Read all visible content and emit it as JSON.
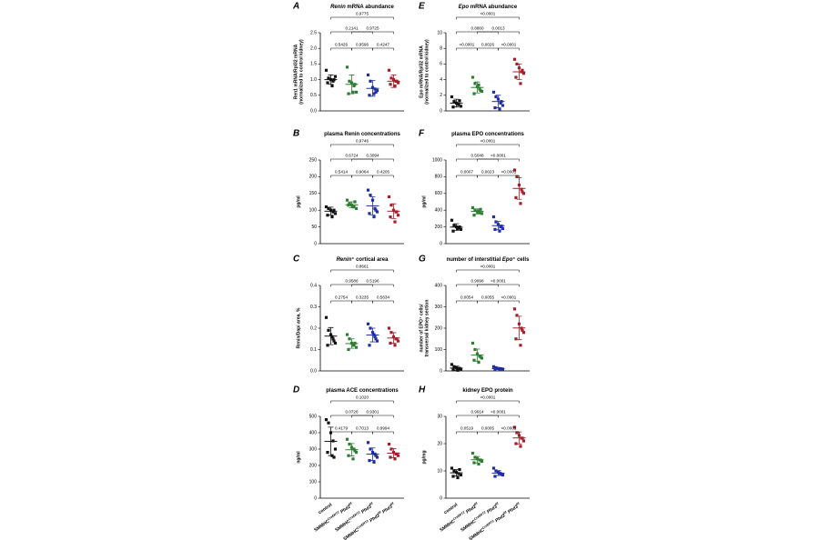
{
  "groups": [
    {
      "color": "#111111",
      "label": [
        {
          "text": "control"
        }
      ]
    },
    {
      "color": "#2e7d32",
      "label": [
        {
          "text": "SMMHC"
        },
        {
          "text": "CreERT2",
          "sup": true
        },
        {
          "text": " Phd2",
          "i": true
        },
        {
          "text": "f/f",
          "sup": true
        }
      ]
    },
    {
      "color": "#1f2ea0",
      "label": [
        {
          "text": "SMMHC"
        },
        {
          "text": "CreERT2",
          "sup": true
        },
        {
          "text": " Phd3",
          "i": true
        },
        {
          "text": "f/f",
          "sup": true
        }
      ]
    },
    {
      "color": "#a3202a",
      "label": [
        {
          "text": "SMMHC"
        },
        {
          "text": "CreERT2",
          "sup": true
        },
        {
          "text": " Phd2",
          "i": true
        },
        {
          "text": "f/f",
          "sup": true
        },
        {
          "text": " Phd3",
          "i": true
        },
        {
          "text": "f/f",
          "sup": true
        }
      ]
    }
  ],
  "chart_data": [
    {
      "type": "scatter",
      "panel": "A",
      "title": [
        {
          "text": "Renin",
          "i": true
        },
        {
          "text": " mRNA abundance"
        }
      ],
      "ylabel": [
        "Ren1 mRNA/Rpl32 mRNA",
        "(normalized to control kidney)"
      ],
      "ylim": [
        0,
        2.5
      ],
      "yticks": [
        {
          "value": 0,
          "label": "0.0"
        },
        0.5,
        {
          "value": 1,
          "label": "1.0"
        },
        1.5,
        {
          "value": 2,
          "label": "2.0"
        },
        2.5
      ],
      "series": [
        {
          "values": [
            1.3,
            1.05,
            1.0,
            0.95,
            1.1,
            0.9,
            0.8,
            1.0
          ],
          "mean": 1.0,
          "sd": 0.15
        },
        {
          "values": [
            1.4,
            0.95,
            0.9,
            0.8,
            0.6,
            0.55,
            0.6,
            0.85
          ],
          "mean": 0.85,
          "sd": 0.3
        },
        {
          "values": [
            1.15,
            0.95,
            0.75,
            0.7,
            0.65,
            0.5,
            0.55,
            0.6
          ],
          "mean": 0.72,
          "sd": 0.25
        },
        {
          "values": [
            1.3,
            1.05,
            1.0,
            0.95,
            0.9,
            0.85,
            0.8,
            0.95
          ],
          "mean": 0.95,
          "sd": 0.2
        }
      ],
      "comparisons": [
        {
          "from": 0,
          "to": 1,
          "label": "0.5426"
        },
        {
          "from": 1,
          "to": 2,
          "label": "0.9596"
        },
        {
          "from": 2,
          "to": 3,
          "label": "0.4247"
        },
        {
          "from": 0,
          "to": 2,
          "label": "0.2141"
        },
        {
          "from": 1,
          "to": 3,
          "label": "0.9725"
        },
        {
          "from": 0,
          "to": 3,
          "label": "0.9775"
        }
      ]
    },
    {
      "type": "scatter",
      "panel": "B",
      "title": [
        {
          "text": "plasma Renin concentrations"
        }
      ],
      "ylabel": [
        "pg/ml"
      ],
      "ylim": [
        0,
        250
      ],
      "yticks": [
        0,
        50,
        100,
        150,
        200,
        250
      ],
      "series": [
        {
          "values": [
            110,
            105,
            100,
            95,
            90,
            85,
            80,
            100
          ],
          "mean": 97,
          "sd": 12
        },
        {
          "values": [
            130,
            120,
            115,
            110,
            105,
            115,
            110,
            125
          ],
          "mean": 116,
          "sd": 9
        },
        {
          "values": [
            160,
            145,
            130,
            105,
            95,
            90,
            80,
            100
          ],
          "mean": 113,
          "sd": 27
        },
        {
          "values": [
            140,
            115,
            100,
            95,
            85,
            80,
            65,
            95
          ],
          "mean": 97,
          "sd": 22
        }
      ],
      "comparisons": [
        {
          "from": 0,
          "to": 1,
          "label": "0.5414"
        },
        {
          "from": 1,
          "to": 2,
          "label": "0.9064"
        },
        {
          "from": 2,
          "to": 3,
          "label": "0.4205"
        },
        {
          "from": 0,
          "to": 2,
          "label": "0.6724"
        },
        {
          "from": 1,
          "to": 3,
          "label": "0.3094"
        },
        {
          "from": 0,
          "to": 3,
          "label": "0.9746"
        }
      ]
    },
    {
      "type": "scatter",
      "panel": "C",
      "title": [
        {
          "text": "Renin",
          "i": true
        },
        {
          "text": "⁺ cortical area"
        }
      ],
      "ylabel": [
        "Renin/Dapi area, %"
      ],
      "ylim": [
        0,
        0.4
      ],
      "yticks": [
        {
          "value": 0,
          "label": "0.0"
        },
        0.1,
        0.2,
        0.3,
        0.4
      ],
      "series": [
        {
          "values": [
            0.25,
            0.19,
            0.17,
            0.15,
            0.13,
            0.12,
            0.16,
            0.14
          ],
          "mean": 0.163,
          "sd": 0.04
        },
        {
          "values": [
            0.17,
            0.15,
            0.13,
            0.12,
            0.11,
            0.1,
            0.12,
            0.13
          ],
          "mean": 0.128,
          "sd": 0.022
        },
        {
          "values": [
            0.22,
            0.2,
            0.18,
            0.16,
            0.14,
            0.12,
            0.17,
            0.15
          ],
          "mean": 0.168,
          "sd": 0.032
        },
        {
          "values": [
            0.2,
            0.18,
            0.16,
            0.15,
            0.14,
            0.13,
            0.12,
            0.15
          ],
          "mean": 0.154,
          "sd": 0.025
        }
      ],
      "comparisons": [
        {
          "from": 0,
          "to": 1,
          "label": "0.2754"
        },
        {
          "from": 1,
          "to": 2,
          "label": "0.3235"
        },
        {
          "from": 2,
          "to": 3,
          "label": "0.5634"
        },
        {
          "from": 0,
          "to": 2,
          "label": "0.9586"
        },
        {
          "from": 1,
          "to": 3,
          "label": "0.5196"
        },
        {
          "from": 0,
          "to": 3,
          "label": "0.8661"
        }
      ]
    },
    {
      "type": "scatter",
      "panel": "D",
      "title": [
        {
          "text": "plasma ACE concentrations"
        }
      ],
      "ylabel": [
        "ng/ml"
      ],
      "ylim": [
        0,
        500
      ],
      "yticks": [
        0,
        100,
        200,
        300,
        400,
        500
      ],
      "series": [
        {
          "values": [
            480,
            460,
            400,
            350,
            300,
            280,
            260,
            250
          ],
          "mean": 347,
          "sd": 87
        },
        {
          "values": [
            360,
            330,
            310,
            300,
            280,
            260,
            240,
            290
          ],
          "mean": 296,
          "sd": 38
        },
        {
          "values": [
            340,
            300,
            280,
            270,
            250,
            230,
            220,
            260
          ],
          "mean": 269,
          "sd": 38
        },
        {
          "values": [
            330,
            300,
            280,
            270,
            260,
            250,
            240,
            270
          ],
          "mean": 275,
          "sd": 28
        }
      ],
      "comparisons": [
        {
          "from": 0,
          "to": 1,
          "label": "0.4179"
        },
        {
          "from": 1,
          "to": 2,
          "label": "0.7013"
        },
        {
          "from": 2,
          "to": 3,
          "label": "0.9994"
        },
        {
          "from": 0,
          "to": 2,
          "label": "0.0726"
        },
        {
          "from": 1,
          "to": 3,
          "label": "0.9301"
        },
        {
          "from": 0,
          "to": 3,
          "label": "0.1020"
        }
      ]
    },
    {
      "type": "scatter",
      "panel": "E",
      "title": [
        {
          "text": "Epo",
          "i": true
        },
        {
          "text": " mRNA abundance"
        }
      ],
      "ylabel": [
        "Epo mRNA/Rpl32 mRNA",
        "(normalized to control kidney)"
      ],
      "ylim": [
        0,
        10
      ],
      "yticks": [
        0,
        2,
        4,
        6,
        8,
        10
      ],
      "series": [
        {
          "values": [
            1.8,
            1.2,
            1.0,
            0.8,
            0.6,
            0.5,
            0.9,
            1.3
          ],
          "mean": 1.0,
          "sd": 0.5
        },
        {
          "values": [
            4.3,
            3.5,
            3.1,
            2.8,
            2.5,
            2.2,
            3.3,
            2.6
          ],
          "mean": 3.0,
          "sd": 0.7
        },
        {
          "values": [
            2.4,
            1.8,
            1.5,
            1.0,
            0.7,
            0.4,
            0.2,
            1.2
          ],
          "mean": 1.2,
          "sd": 0.8
        },
        {
          "values": [
            6.6,
            6.0,
            5.5,
            5.0,
            4.8,
            4.3,
            3.5,
            5.2
          ],
          "mean": 5.0,
          "sd": 1.0
        }
      ],
      "comparisons": [
        {
          "from": 0,
          "to": 1,
          "label": "<0.0001"
        },
        {
          "from": 1,
          "to": 2,
          "label": "0.0026"
        },
        {
          "from": 2,
          "to": 3,
          "label": "<0.0001"
        },
        {
          "from": 0,
          "to": 2,
          "label": "0.8860"
        },
        {
          "from": 1,
          "to": 3,
          "label": "0.0013"
        },
        {
          "from": 0,
          "to": 3,
          "label": "<0.0001"
        }
      ]
    },
    {
      "type": "scatter",
      "panel": "F",
      "title": [
        {
          "text": "plasma EPO concentrations"
        }
      ],
      "ylabel": [
        "pg/ml"
      ],
      "ylim": [
        0,
        1000
      ],
      "yticks": [
        0,
        200,
        400,
        600,
        800,
        1000
      ],
      "series": [
        {
          "values": [
            280,
            220,
            200,
            190,
            170,
            150,
            180,
            200
          ],
          "mean": 198,
          "sd": 40
        },
        {
          "values": [
            430,
            400,
            380,
            370,
            360,
            340,
            390,
            410
          ],
          "mean": 385,
          "sd": 30
        },
        {
          "values": [
            320,
            260,
            230,
            200,
            180,
            170,
            150,
            210
          ],
          "mean": 215,
          "sd": 50
        },
        {
          "values": [
            880,
            800,
            700,
            650,
            600,
            550,
            480,
            620
          ],
          "mean": 660,
          "sd": 130
        }
      ],
      "comparisons": [
        {
          "from": 0,
          "to": 1,
          "label": "0.0007"
        },
        {
          "from": 1,
          "to": 2,
          "label": "0.0023"
        },
        {
          "from": 2,
          "to": 3,
          "label": "<0.0001"
        },
        {
          "from": 0,
          "to": 2,
          "label": "0.5048"
        },
        {
          "from": 1,
          "to": 3,
          "label": "<0.0001"
        },
        {
          "from": 0,
          "to": 3,
          "label": "<0.0001"
        }
      ]
    },
    {
      "type": "scatter",
      "panel": "G",
      "title": [
        {
          "text": "number of interstitial "
        },
        {
          "text": "Epo",
          "i": true
        },
        {
          "text": "⁺ cells"
        }
      ],
      "ylabel": [
        "number of EPO⁺ cells/",
        "transversal kidney section"
      ],
      "ylim": [
        0,
        400
      ],
      "yticks": [
        0,
        100,
        200,
        300,
        400
      ],
      "series": [
        {
          "values": [
            30,
            20,
            15,
            10,
            8,
            5,
            3,
            12
          ],
          "mean": 13,
          "sd": 9
        },
        {
          "values": [
            130,
            100,
            80,
            70,
            60,
            50,
            40,
            65
          ],
          "mean": 74,
          "sd": 28
        },
        {
          "values": [
            20,
            15,
            12,
            10,
            8,
            6,
            5,
            10
          ],
          "mean": 11,
          "sd": 5
        },
        {
          "values": [
            290,
            260,
            220,
            200,
            180,
            150,
            120,
            190
          ],
          "mean": 201,
          "sd": 55
        }
      ],
      "comparisons": [
        {
          "from": 0,
          "to": 1,
          "label": "0.0054"
        },
        {
          "from": 1,
          "to": 2,
          "label": "0.0055"
        },
        {
          "from": 2,
          "to": 3,
          "label": "<0.0001"
        },
        {
          "from": 0,
          "to": 2,
          "label": "0.9998"
        },
        {
          "from": 1,
          "to": 3,
          "label": "<0.0001"
        },
        {
          "from": 0,
          "to": 3,
          "label": "<0.0001"
        }
      ]
    },
    {
      "type": "scatter",
      "panel": "H",
      "title": [
        {
          "text": "kidney EPO protein"
        }
      ],
      "ylabel": [
        "pg/mg"
      ],
      "ylim": [
        0,
        30
      ],
      "yticks": [
        0,
        10,
        20,
        30
      ],
      "series": [
        {
          "values": [
            11,
            10,
            9.5,
            9,
            8.5,
            8,
            7.5,
            10.5
          ],
          "mean": 9.3,
          "sd": 1.2
        },
        {
          "values": [
            16.5,
            15,
            14.5,
            14,
            13.5,
            13,
            12.5,
            14
          ],
          "mean": 14.1,
          "sd": 1.2
        },
        {
          "values": [
            11,
            10,
            9.5,
            9,
            8.5,
            8,
            9.2,
            8.8
          ],
          "mean": 9.2,
          "sd": 0.9
        },
        {
          "values": [
            26,
            24,
            23,
            22,
            21,
            20,
            19,
            22
          ],
          "mean": 22.1,
          "sd": 2.2
        }
      ],
      "comparisons": [
        {
          "from": 0,
          "to": 1,
          "label": "0.0519"
        },
        {
          "from": 1,
          "to": 2,
          "label": "0.0005"
        },
        {
          "from": 2,
          "to": 3,
          "label": "<0.0001"
        },
        {
          "from": 0,
          "to": 2,
          "label": "0.9914"
        },
        {
          "from": 1,
          "to": 3,
          "label": "<0.0001"
        },
        {
          "from": 0,
          "to": 3,
          "label": "<0.0001"
        }
      ]
    }
  ]
}
